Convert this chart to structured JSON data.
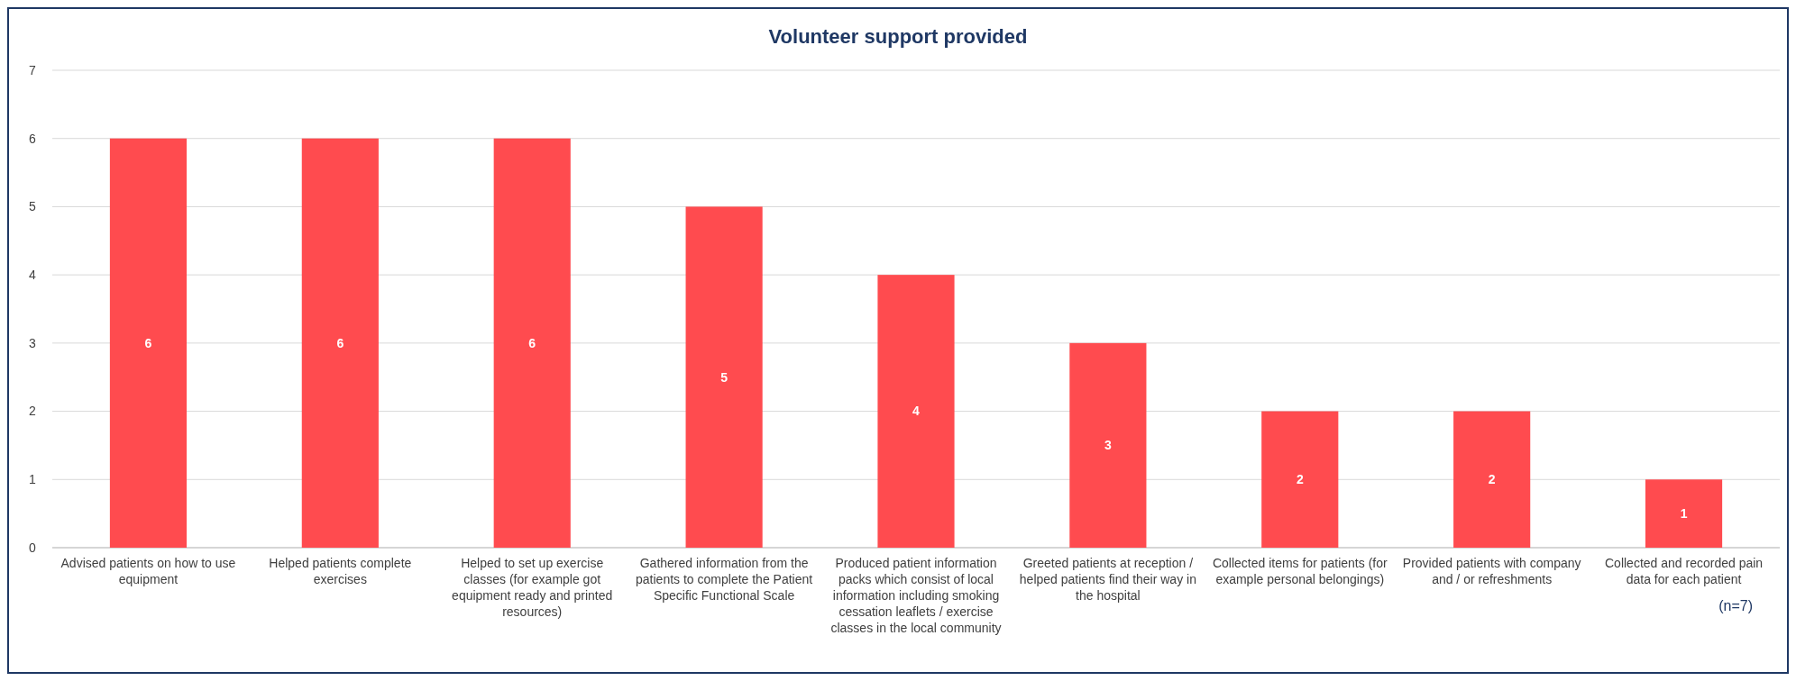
{
  "chart_data": {
    "type": "bar",
    "title": "Volunteer support provided",
    "categories": [
      "Advised patients on how to use equipment",
      "Helped patients complete exercises",
      "Helped to set up exercise classes (for example got equipment ready and printed resources)",
      "Gathered information from the patients to complete the Patient Specific Functional Scale",
      "Produced patient information packs which consist of local information including smoking cessation leaflets / exercise classes in the local community",
      "Greeted patients at reception / helped patients find their way in the hospital",
      "Collected items for patients (for example personal belongings)",
      "Provided patients with company and / or refreshments",
      "Collected and recorded pain data for each patient"
    ],
    "values": [
      6,
      6,
      6,
      5,
      4,
      3,
      2,
      2,
      1
    ],
    "color": "#ff4b4f",
    "ylim": [
      0,
      7
    ],
    "yticks": [
      0,
      1,
      2,
      3,
      4,
      5,
      6,
      7
    ],
    "grid": "y",
    "data_labels": true,
    "annotations": [
      "(n=7)"
    ]
  }
}
